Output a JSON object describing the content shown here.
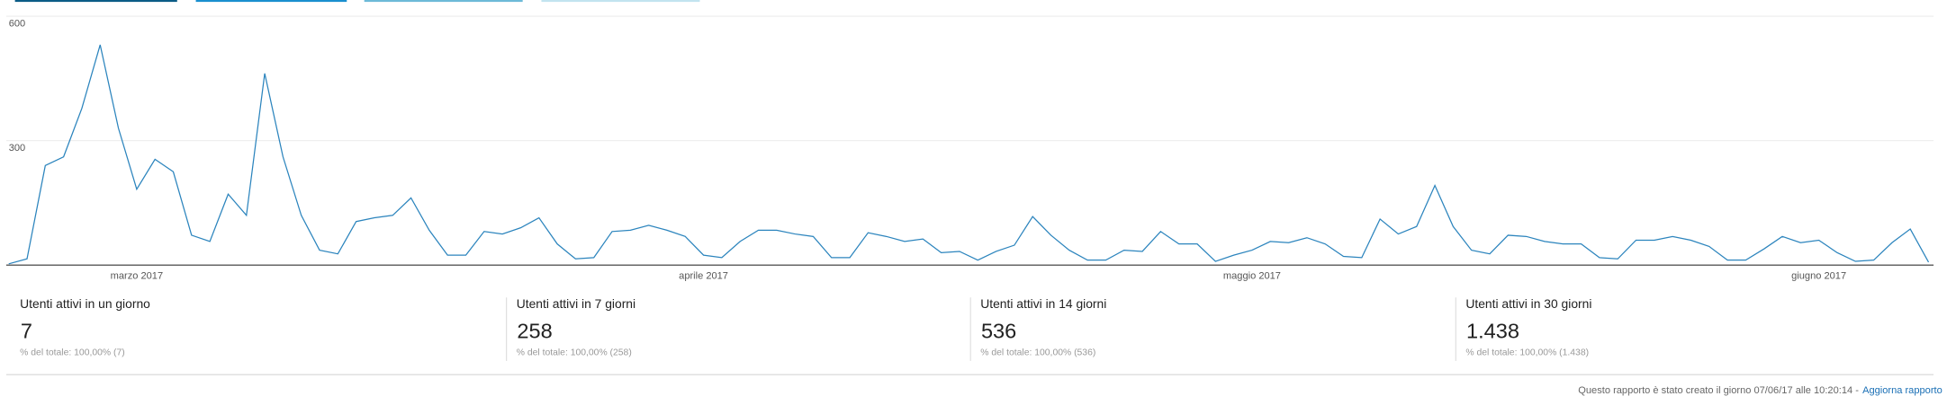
{
  "chart_data": {
    "type": "line",
    "color": "#2b84bd",
    "categories": [
      null,
      null,
      null,
      null,
      null,
      null,
      null,
      "marzo 2017",
      null,
      null,
      null,
      null,
      null,
      null,
      null,
      null,
      null,
      null,
      null,
      null,
      null,
      null,
      null,
      null,
      null,
      null,
      null,
      null,
      null,
      null,
      null,
      null,
      null,
      null,
      null,
      null,
      null,
      null,
      "aprile 2017",
      null,
      null,
      null,
      null,
      null,
      null,
      null,
      null,
      null,
      null,
      null,
      null,
      null,
      null,
      null,
      null,
      null,
      null,
      null,
      null,
      null,
      null,
      null,
      null,
      null,
      null,
      null,
      null,
      null,
      "maggio 2017",
      null,
      null,
      null,
      null,
      null,
      null,
      null,
      null,
      null,
      null,
      null,
      null,
      null,
      null,
      null,
      null,
      null,
      null,
      null,
      null,
      null,
      null,
      null,
      null,
      null,
      null,
      null,
      null,
      null,
      null,
      "giugno 2017",
      null,
      null,
      null,
      null,
      null,
      null
    ],
    "values": [
      3,
      15,
      240,
      261,
      378,
      531,
      330,
      183,
      255,
      225,
      72,
      57,
      171,
      120,
      462,
      261,
      120,
      36,
      27,
      105,
      114,
      120,
      162,
      84,
      24,
      24,
      81,
      75,
      90,
      114,
      51,
      15,
      18,
      81,
      84,
      96,
      84,
      69,
      24,
      18,
      57,
      84,
      84,
      75,
      69,
      18,
      18,
      78,
      69,
      57,
      63,
      30,
      33,
      12,
      33,
      48,
      117,
      72,
      36,
      12,
      12,
      36,
      33,
      81,
      51,
      51,
      9,
      24,
      36,
      57,
      54,
      66,
      51,
      21,
      18,
      111,
      75,
      93,
      192,
      93,
      36,
      27,
      72,
      69,
      57,
      51,
      51,
      18,
      15,
      60,
      60,
      69,
      60,
      45,
      12,
      12,
      39,
      69,
      54,
      60,
      30,
      9,
      12,
      54,
      87,
      7
    ],
    "ylim": [
      0,
      600
    ],
    "yticks": [
      300,
      600
    ],
    "grid": true
  },
  "metrics": [
    {
      "label": "Utenti attivi in un giorno",
      "value": "7",
      "share": "% del totale: 100,00% (7)"
    },
    {
      "label": "Utenti attivi in 7 giorni",
      "value": "258",
      "share": "% del totale: 100,00% (258)"
    },
    {
      "label": "Utenti attivi in 14 giorni",
      "value": "536",
      "share": "% del totale: 100,00% (536)"
    },
    {
      "label": "Utenti attivi in 30 giorni",
      "value": "1.438",
      "share": "% del totale: 100,00% (1.438)"
    }
  ],
  "footer": {
    "text": "Questo rapporto è stato creato il giorno 07/06/17 alle 10:20:14 -",
    "link": "Aggiorna rapporto"
  }
}
